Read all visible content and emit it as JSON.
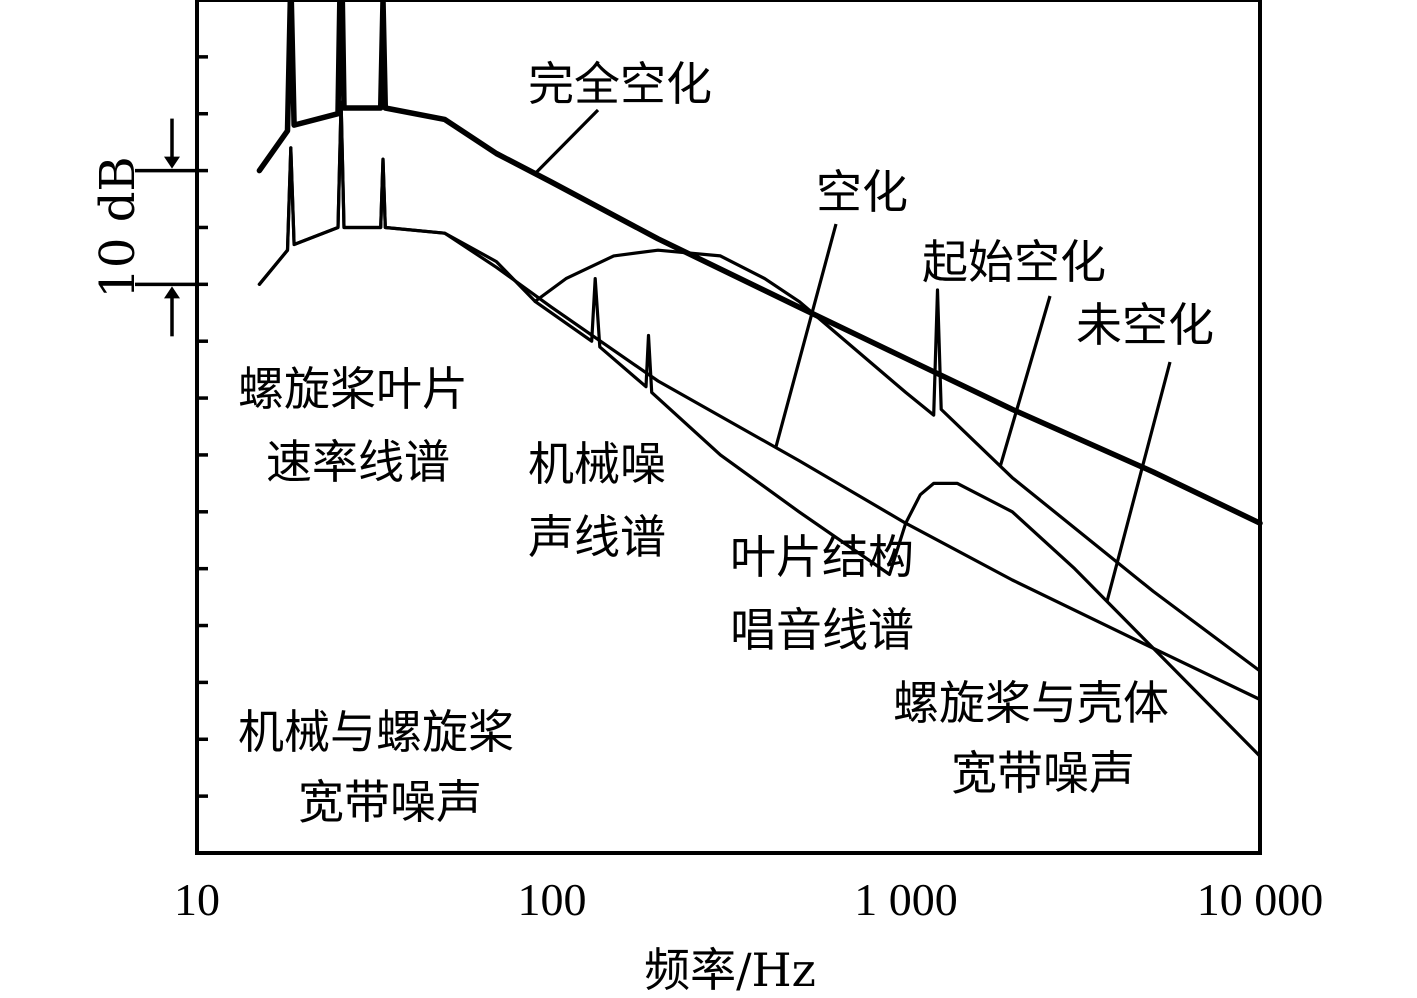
{
  "chart_data": {
    "type": "line",
    "x_scale": "log",
    "xlim": [
      10,
      10000
    ],
    "ylim": [
      -5,
      70
    ],
    "xticks": [
      {
        "value": 10,
        "label": "10"
      },
      {
        "value": 100,
        "label": "100"
      },
      {
        "value": 1000,
        "label": "1 000"
      },
      {
        "value": 10000,
        "label": "10 000"
      }
    ],
    "xlabel": "频率/Hz",
    "scale_bar": {
      "label": "10 dB",
      "from": 45,
      "to": 55
    },
    "series": [
      {
        "name": "完全空化",
        "style": "thick",
        "x": [
          15,
          18,
          18.4,
          18.8,
          25,
          25.5,
          26,
          33,
          33.5,
          34,
          50,
          70,
          100,
          200,
          500,
          1000,
          2000,
          5000,
          10000
        ],
        "y": [
          55,
          58.5,
          72,
          59,
          60,
          77,
          60.5,
          60.5,
          70,
          60.5,
          59.5,
          56.5,
          54,
          49,
          43,
          38.5,
          34,
          28.5,
          24
        ]
      },
      {
        "name": "空化",
        "x": [
          15,
          18,
          18.4,
          18.8,
          25,
          25.5,
          26,
          33,
          33.5,
          34,
          50,
          70,
          100,
          200,
          500,
          1000,
          2000,
          5000,
          10000
        ],
        "y": [
          45,
          48,
          57,
          48.5,
          50,
          61,
          50,
          50,
          56,
          50,
          49.5,
          46.5,
          43,
          36.5,
          29.5,
          24,
          19,
          13,
          8.5
        ]
      },
      {
        "name": "起始空化",
        "x": [
          90,
          110,
          150,
          200,
          300,
          400,
          500,
          1000,
          1200,
          1230,
          1260,
          2000,
          5000,
          10000
        ],
        "y": [
          43.5,
          45.5,
          47.5,
          48,
          47.5,
          45.5,
          43.5,
          35.5,
          33.5,
          44.5,
          34,
          28,
          18,
          11
        ]
      },
      {
        "name": "未空化",
        "x": [
          15,
          18,
          18.4,
          18.8,
          25,
          25.5,
          26,
          33,
          33.5,
          34,
          50,
          70,
          90,
          130,
          133,
          137,
          185,
          188,
          192,
          300,
          500,
          900,
          1000,
          1100,
          1200,
          1400,
          2000,
          3000,
          5000,
          10000
        ],
        "y": [
          45,
          48,
          57,
          48.5,
          50,
          61,
          50,
          50,
          56,
          50,
          49.5,
          47,
          43.5,
          40,
          45.5,
          39.5,
          36,
          40.5,
          35.5,
          30,
          25,
          19.5,
          24,
          26.5,
          27.5,
          27.5,
          25,
          20,
          13,
          3.5
        ]
      }
    ],
    "annotations": [
      {
        "text": "完全空化",
        "points_to_x": 90
      },
      {
        "text": "空化",
        "points_to_x": 430
      },
      {
        "text": "起始空化",
        "points_to_x": 1850
      },
      {
        "text": "未空化",
        "points_to_x": 3700
      },
      {
        "lines": [
          "螺旋桨叶片",
          "速率线谱"
        ]
      },
      {
        "lines": [
          "机械噪",
          "声线谱"
        ]
      },
      {
        "lines": [
          "叶片结构",
          "唱音线谱"
        ]
      },
      {
        "lines": [
          "螺旋桨与壳体",
          "宽带噪声"
        ]
      },
      {
        "lines": [
          "机械与螺旋桨",
          "宽带噪声"
        ]
      }
    ]
  }
}
